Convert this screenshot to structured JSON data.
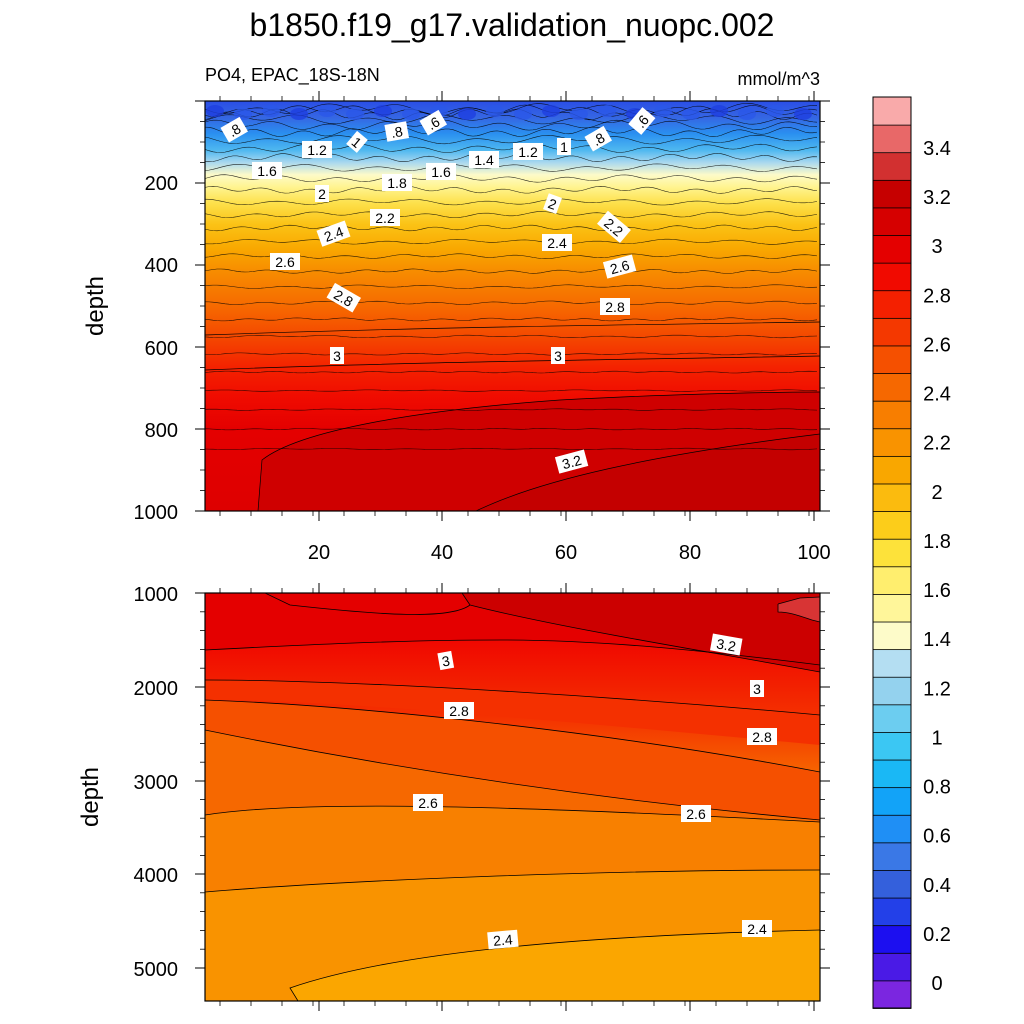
{
  "title": "b1850.f19_g17.validation_nuopc.002",
  "subtitle_left": "PO4, EPAC_18S-18N",
  "subtitle_right": "mmol/m^3",
  "chart_data": [
    {
      "type": "heatmap",
      "panel": "upper",
      "ylabel": "depth",
      "xlim": [
        1,
        101
      ],
      "ylim": [
        1000,
        0
      ],
      "x_ticks": [
        "20",
        "40",
        "60",
        "80",
        "100"
      ],
      "y_ticks": [
        "200",
        "400",
        "600",
        "800",
        "1000"
      ],
      "contour_labels": [
        ".8",
        ".8",
        ".6",
        ".6",
        "1.2",
        "1",
        "1.4",
        "1.2",
        "1",
        ".8",
        "1.6",
        "1.8",
        "1.6",
        "2",
        "2",
        "2.2",
        "2.4",
        "2.2",
        "2.4",
        "2.6",
        "2.6",
        "2.8",
        "2.8",
        "3",
        "3",
        "3.2"
      ],
      "profile": {
        "depth": [
          0,
          50,
          100,
          150,
          200,
          250,
          300,
          350,
          400,
          450,
          500,
          550,
          600,
          650,
          700,
          800,
          900,
          1000
        ],
        "value": [
          0.5,
          0.8,
          1.2,
          1.5,
          1.8,
          2.05,
          2.25,
          2.4,
          2.55,
          2.68,
          2.78,
          2.88,
          2.97,
          3.03,
          3.08,
          3.15,
          3.2,
          3.23
        ]
      }
    },
    {
      "type": "heatmap",
      "panel": "lower",
      "ylabel": "depth",
      "ylim": [
        1000,
        5400
      ],
      "y_ticks": [
        "1000",
        "2000",
        "3000",
        "4000",
        "5000"
      ],
      "contour_labels": [
        "3",
        "3.2",
        "3",
        "2.8",
        "2.8",
        "2.6",
        "2.6",
        "2.4",
        "2.4"
      ]
    }
  ],
  "colorbar": {
    "labels": [
      "0",
      "0.2",
      "0.4",
      "0.6",
      "0.8",
      "1",
      "1.2",
      "1.4",
      "1.6",
      "1.8",
      "2",
      "2.2",
      "2.4",
      "2.6",
      "2.8",
      "3",
      "3.2",
      "3.4"
    ],
    "colors": [
      "#7b26e0",
      "#4a1ae6",
      "#1c0ff0",
      "#2340e8",
      "#3460dc",
      "#3a78e6",
      "#1f8ff5",
      "#12a3f8",
      "#1ab8f5",
      "#3bc7f3",
      "#6ccdf0",
      "#94d2ee",
      "#b4def2",
      "#fdfbc9",
      "#fff69a",
      "#ffee6e",
      "#fde23a",
      "#fccd1a",
      "#fbbb0e",
      "#f9a700",
      "#f99300",
      "#f87e00",
      "#f66800",
      "#f55000",
      "#f43800",
      "#f42000",
      "#f10a00",
      "#e40000",
      "#d60000",
      "#c60000",
      "#d23030",
      "#e86868",
      "#f9aaaa"
    ]
  }
}
